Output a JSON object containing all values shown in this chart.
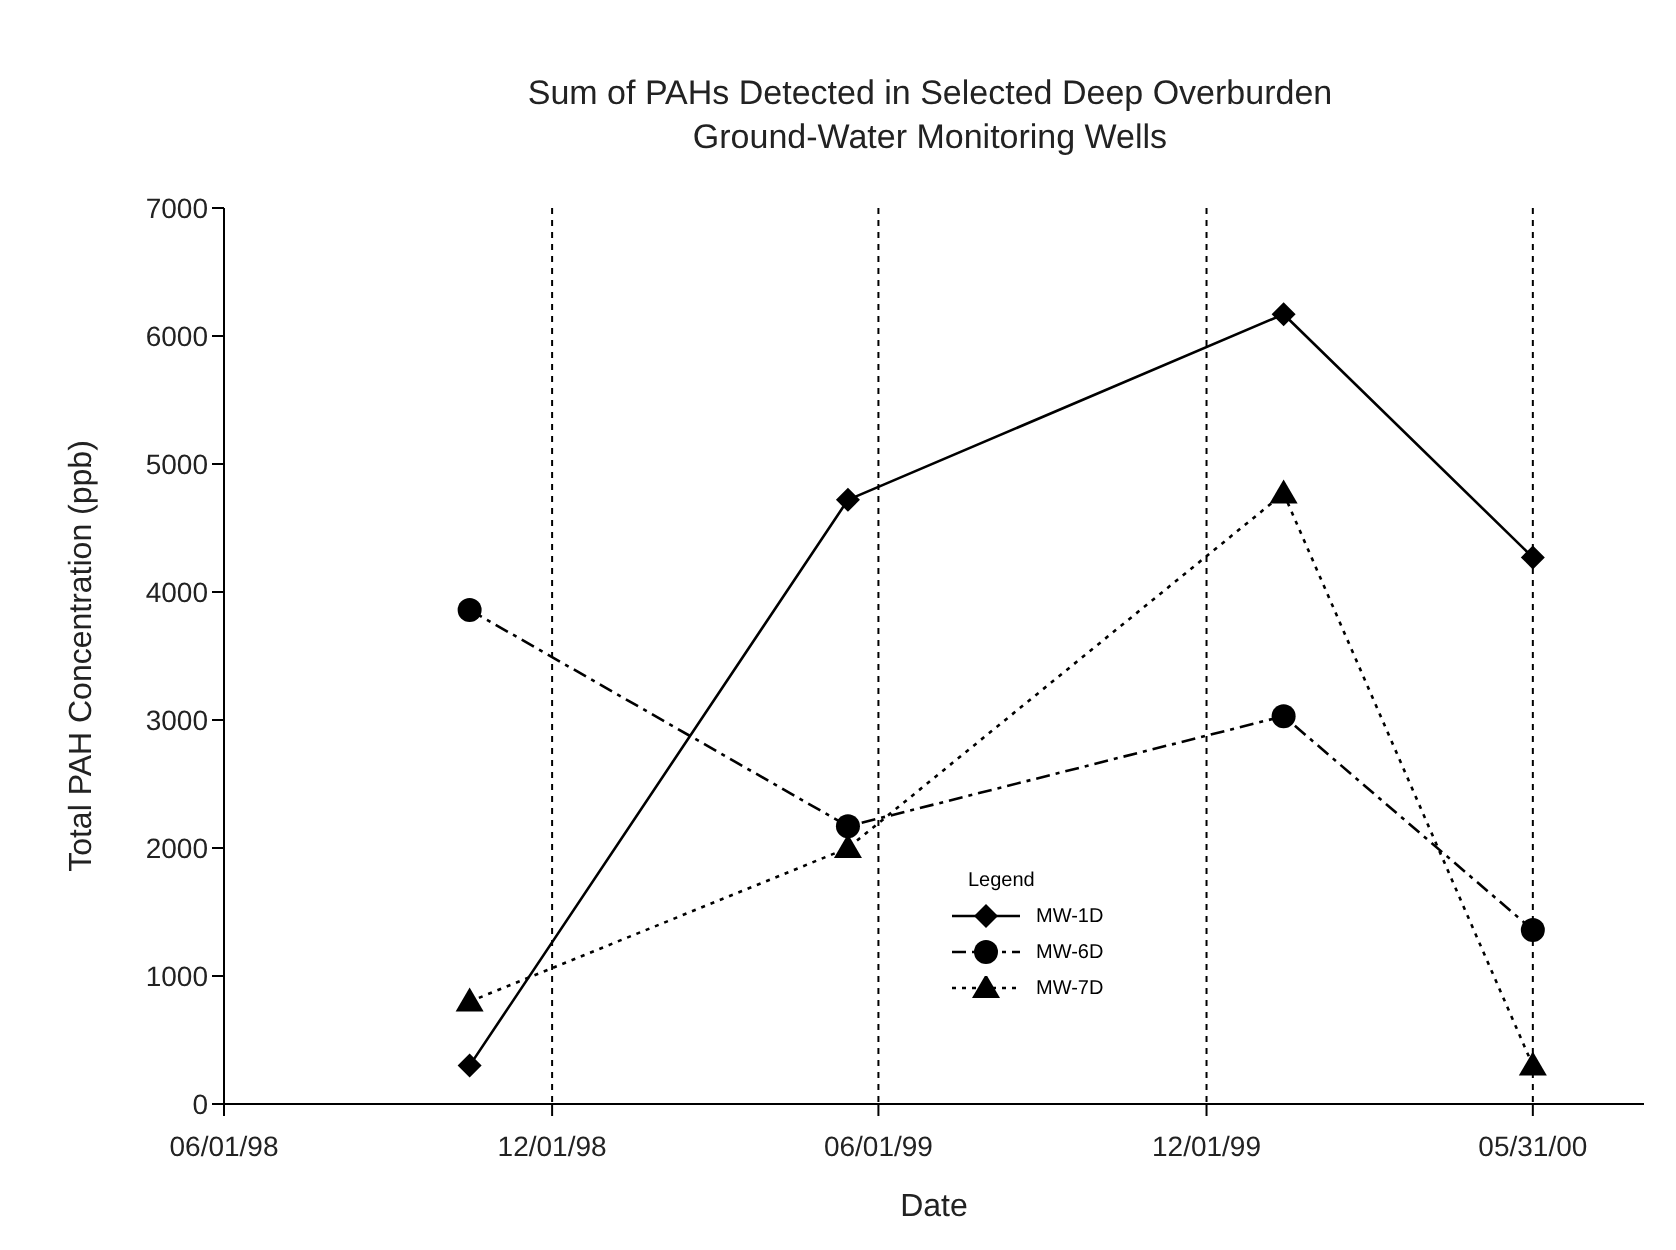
{
  "chart_data": {
    "type": "line",
    "title": "Sum of PAHs  Detected in Selected Deep Overburden\nGround-Water Monitoring Wells",
    "xlabel": "Date",
    "ylabel": "Total PAH Concentration (ppb)",
    "legend_title": "Legend",
    "x": [
      "1998-10-16",
      "1999-05-15",
      "2000-01-13",
      "2000-05-31"
    ],
    "series": [
      {
        "name": "MW-1D",
        "color": "#000000",
        "marker": "diamond",
        "line_style": "solid",
        "values": [
          300,
          4720,
          6170,
          4270
        ]
      },
      {
        "name": "MW-6D",
        "color": "#000000",
        "marker": "circle",
        "line_style": "dashed",
        "values": [
          3860,
          2170,
          3030,
          1360
        ]
      },
      {
        "name": "MW-7D",
        "color": "#000000",
        "marker": "triangle",
        "line_style": "dotted",
        "values": [
          800,
          2000,
          4770,
          300
        ]
      }
    ],
    "xlim": [
      "1998-06-01",
      "2000-08-01"
    ],
    "xticks": [
      {
        "value": "1998-06-01",
        "label": "06/01/98"
      },
      {
        "value": "1998-12-01",
        "label": "12/01/98"
      },
      {
        "value": "1999-06-01",
        "label": "06/01/99"
      },
      {
        "value": "1999-12-01",
        "label": "12/01/99"
      },
      {
        "value": "2000-05-31",
        "label": "05/31/00"
      }
    ],
    "ylim": [
      0,
      7000
    ],
    "yticks": [
      0,
      1000,
      2000,
      3000,
      4000,
      5000,
      6000,
      7000
    ],
    "grid": "x",
    "legend": "bottom right"
  }
}
